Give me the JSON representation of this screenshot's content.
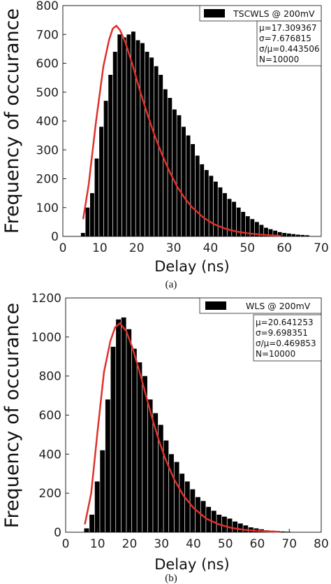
{
  "chart_data": [
    {
      "type": "bar",
      "caption": "(a)",
      "xlabel": "Delay (ns)",
      "ylabel": "Frequency of occurance",
      "xlim": [
        0,
        70
      ],
      "ylim": [
        0,
        800
      ],
      "xticks": [
        0,
        10,
        20,
        30,
        40,
        50,
        60,
        70
      ],
      "yticks": [
        0,
        100,
        200,
        300,
        400,
        500,
        600,
        700,
        800
      ],
      "bin_width": 1.24,
      "bin_start": 4.9,
      "values": [
        12,
        100,
        150,
        270,
        380,
        470,
        560,
        640,
        700,
        690,
        700,
        710,
        680,
        670,
        640,
        620,
        590,
        560,
        510,
        480,
        440,
        420,
        380,
        350,
        320,
        280,
        250,
        230,
        210,
        190,
        170,
        150,
        130,
        120,
        100,
        85,
        70,
        60,
        50,
        40,
        30,
        25,
        20,
        15,
        12,
        10,
        8,
        6,
        5,
        4
      ],
      "series": [
        {
          "name": "TSCWLS @ 200mV",
          "type": "histogram"
        },
        {
          "name": "fit",
          "type": "line",
          "color": "#e0302a",
          "x": [
            5.5,
            7,
            9,
            11,
            12.5,
            13.5,
            14.5,
            15.5,
            17,
            19,
            21,
            23,
            25,
            27,
            29,
            31,
            33,
            35,
            38,
            41,
            44,
            47,
            50,
            53,
            56,
            59
          ],
          "y": [
            60,
            180,
            400,
            590,
            680,
            720,
            730,
            715,
            670,
            590,
            500,
            420,
            345,
            280,
            222,
            172,
            133,
            101,
            66,
            42,
            27,
            17,
            11,
            7,
            4,
            2
          ]
        }
      ],
      "legend_position": "top-right",
      "stats": [
        "μ=17.309367",
        "σ=7.676815",
        "σ/μ=0.443506",
        "N=10000"
      ],
      "colors": {
        "bars": "#000000",
        "fit": "#e0302a"
      }
    },
    {
      "type": "bar",
      "caption": "(b)",
      "xlabel": "Delay (ns)",
      "ylabel": "Frequency of occurance",
      "xlim": [
        0,
        80
      ],
      "ylim": [
        0,
        1200
      ],
      "xticks": [
        0,
        10,
        20,
        30,
        40,
        50,
        60,
        70,
        80
      ],
      "yticks": [
        0,
        200,
        400,
        600,
        800,
        1000,
        1200
      ],
      "bin_width": 1.66,
      "bin_start": 5.8,
      "values": [
        20,
        90,
        260,
        420,
        680,
        950,
        1090,
        1100,
        1040,
        940,
        870,
        800,
        680,
        610,
        550,
        470,
        400,
        360,
        300,
        260,
        220,
        180,
        160,
        130,
        110,
        90,
        80,
        70,
        55,
        45,
        35,
        25,
        20,
        15,
        10,
        8,
        6,
        4,
        3
      ],
      "series": [
        {
          "name": "WLS @ 200mV",
          "type": "histogram"
        },
        {
          "name": "fit",
          "type": "line",
          "color": "#e0302a",
          "x": [
            6,
            8,
            10,
            12,
            14,
            15.5,
            17,
            19,
            21,
            23,
            25,
            27,
            29,
            31,
            34,
            37,
            40,
            44,
            48,
            52,
            56,
            60,
            64,
            67
          ],
          "y": [
            40,
            200,
            520,
            820,
            980,
            1050,
            1070,
            1030,
            940,
            830,
            710,
            590,
            480,
            385,
            270,
            185,
            125,
            70,
            40,
            22,
            12,
            7,
            4,
            2
          ]
        }
      ],
      "legend_position": "top-right",
      "stats": [
        "μ=20.641253",
        "σ=9.698351",
        "σ/μ=0.469853",
        "N=10000"
      ],
      "colors": {
        "bars": "#000000",
        "fit": "#e0302a"
      }
    }
  ]
}
